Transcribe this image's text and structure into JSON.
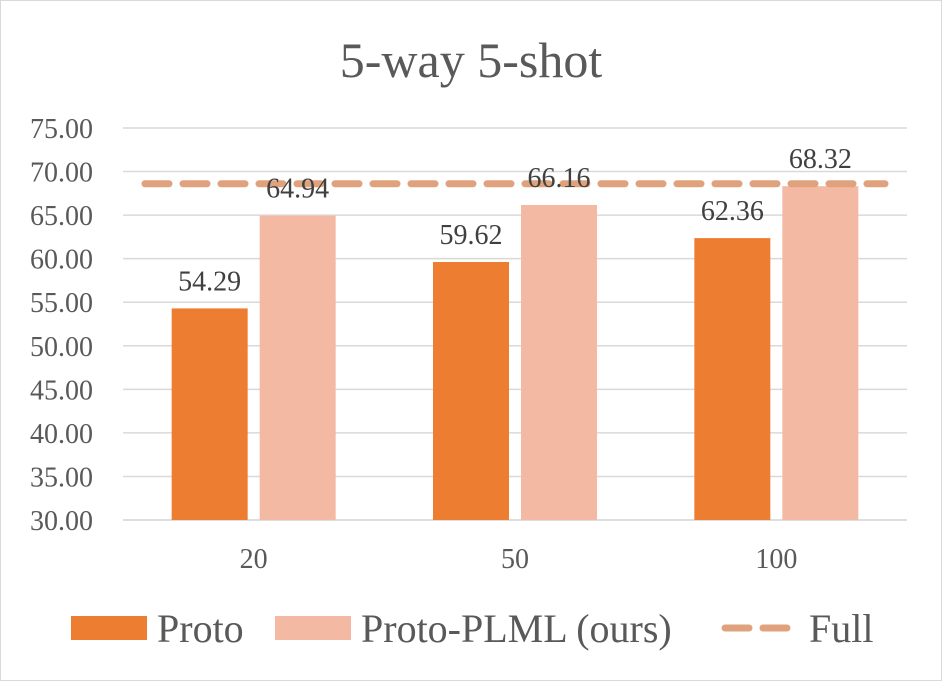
{
  "chart_data": {
    "type": "bar",
    "title": "5-way 5-shot",
    "xlabel": "",
    "ylabel": "",
    "categories": [
      "20",
      "50",
      "100"
    ],
    "series": [
      {
        "name": "Proto",
        "values": [
          54.29,
          59.62,
          62.36
        ],
        "labels": [
          "54.29",
          "59.62",
          "62.36"
        ],
        "color": "#ED7D31"
      },
      {
        "name": "Proto-PLML (ours)",
        "values": [
          64.94,
          66.16,
          68.32
        ],
        "labels": [
          "64.94",
          "66.16",
          "68.32"
        ],
        "color": "#F4B9A3"
      }
    ],
    "reference_line": {
      "name": "Full",
      "value": 68.6,
      "color": "#E0A27C",
      "style": "dashed"
    },
    "ylim": [
      30,
      75
    ],
    "yticks": [
      "30.00",
      "35.00",
      "40.00",
      "45.00",
      "50.00",
      "55.00",
      "60.00",
      "65.00",
      "70.00",
      "75.00"
    ],
    "grid": true,
    "legend_position": "bottom"
  }
}
